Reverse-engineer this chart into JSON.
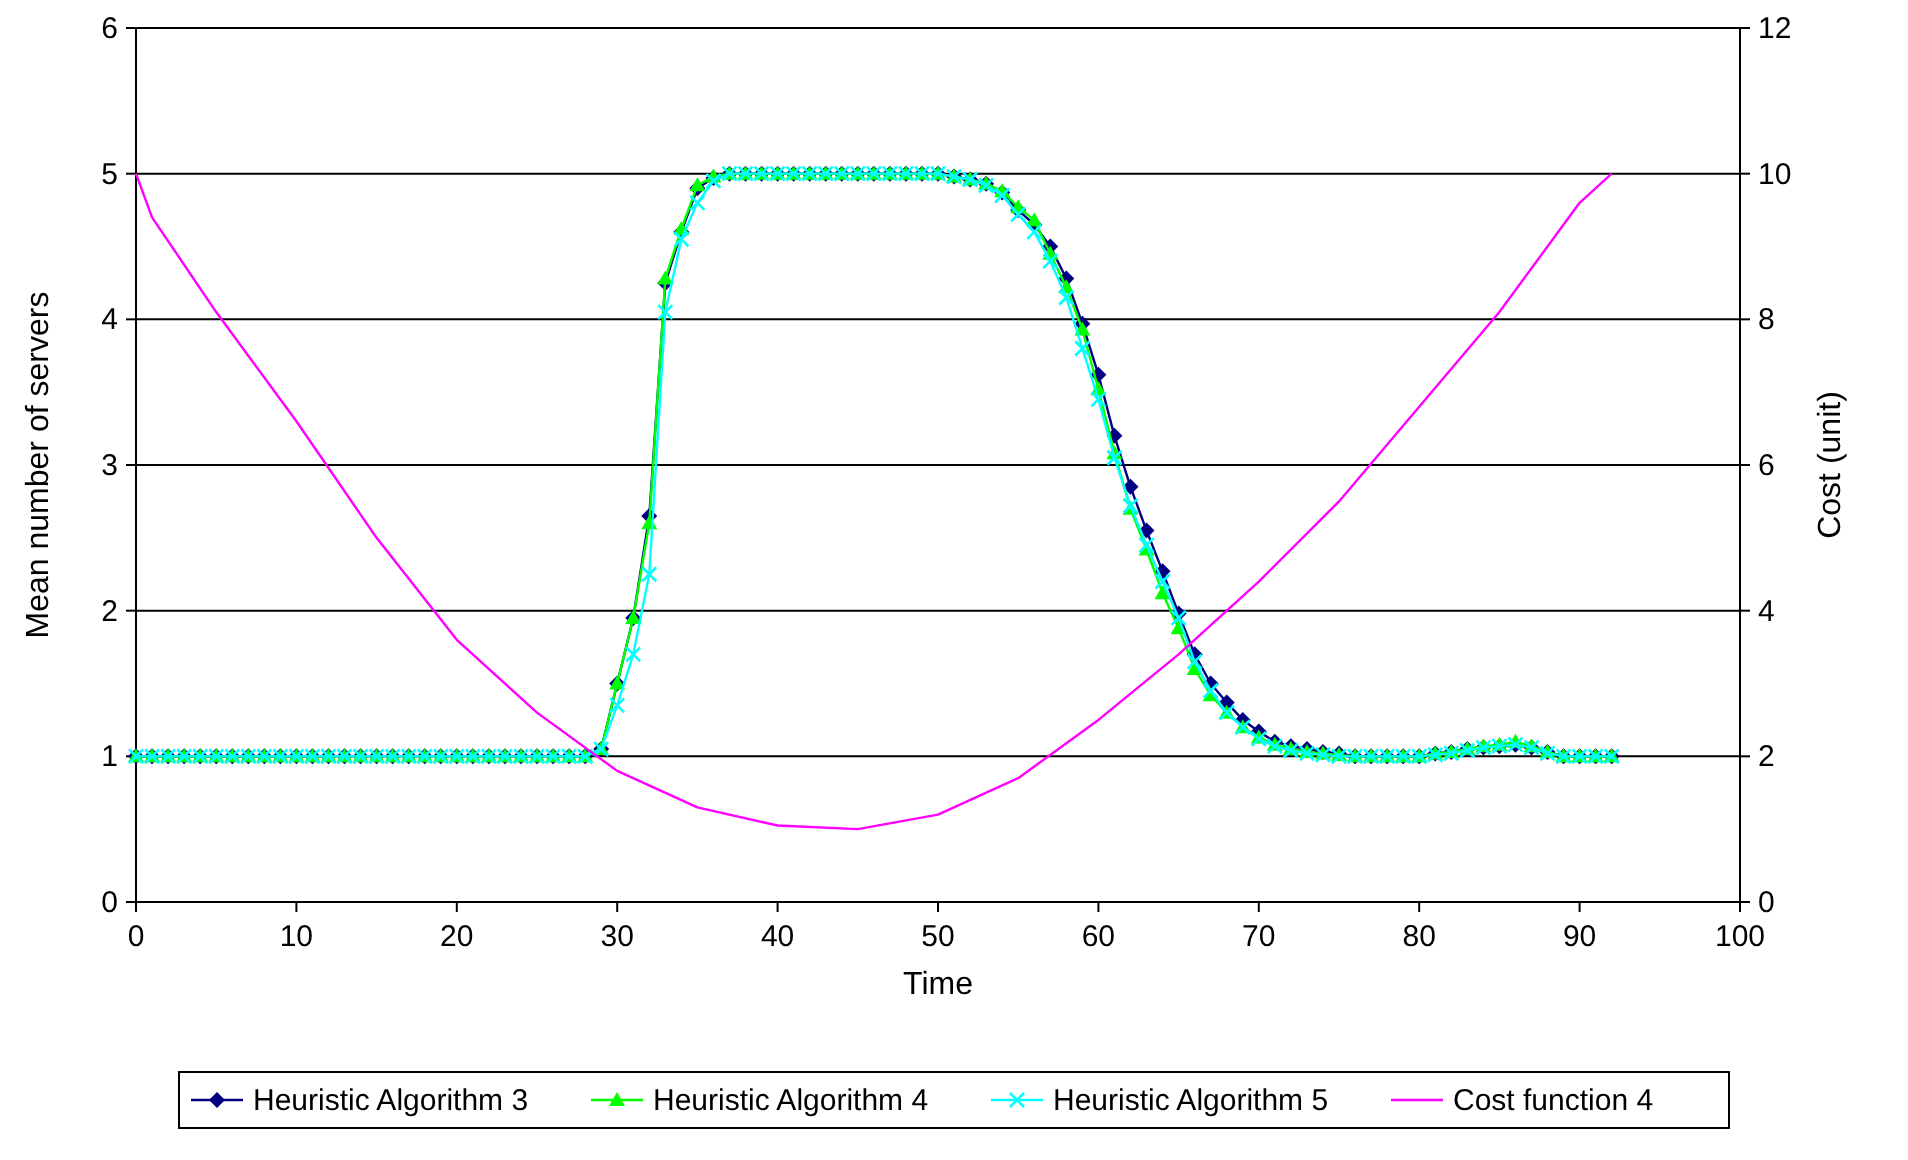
{
  "chart_data": {
    "type": "line",
    "xlabel": "Time",
    "ylabel": "Mean number of servers",
    "y2label": "Cost (unit)",
    "x": [
      0,
      1,
      2,
      3,
      4,
      5,
      6,
      7,
      8,
      9,
      10,
      11,
      12,
      13,
      14,
      15,
      16,
      17,
      18,
      19,
      20,
      21,
      22,
      23,
      24,
      25,
      26,
      27,
      28,
      29,
      30,
      31,
      32,
      33,
      34,
      35,
      36,
      37,
      38,
      39,
      40,
      41,
      42,
      43,
      44,
      45,
      46,
      47,
      48,
      49,
      50,
      51,
      52,
      53,
      54,
      55,
      56,
      57,
      58,
      59,
      60,
      61,
      62,
      63,
      64,
      65,
      66,
      67,
      68,
      69,
      70,
      71,
      72,
      73,
      74,
      75,
      76,
      77,
      78,
      79,
      80,
      81,
      82,
      83,
      84,
      85,
      86,
      87,
      88,
      89,
      90,
      91,
      92
    ],
    "xlim": [
      0,
      100
    ],
    "xticks": [
      0,
      10,
      20,
      30,
      40,
      50,
      60,
      70,
      80,
      90,
      100
    ],
    "ylim": [
      0,
      6
    ],
    "yticks": [
      0,
      1,
      2,
      3,
      4,
      5,
      6
    ],
    "y2lim": [
      0,
      12
    ],
    "y2ticks": [
      0,
      2,
      4,
      6,
      8,
      10,
      12
    ],
    "grid": "y",
    "legend": "bottom",
    "line_style": "solid",
    "series": [
      {
        "name": "Heuristic Algorithm 3",
        "color": "#000080",
        "marker": "diamond",
        "values": [
          1,
          1,
          1,
          1,
          1,
          1,
          1,
          1,
          1,
          1,
          1,
          1,
          1,
          1,
          1,
          1,
          1,
          1,
          1,
          1,
          1,
          1,
          1,
          1,
          1,
          1,
          1,
          1,
          1,
          1.05,
          1.5,
          1.95,
          2.65,
          4.25,
          4.6,
          4.9,
          4.97,
          5,
          5,
          5,
          5,
          5,
          5,
          5,
          5,
          5,
          5,
          5,
          5,
          5,
          5,
          4.98,
          4.96,
          4.93,
          4.87,
          4.75,
          4.65,
          4.5,
          4.28,
          3.97,
          3.62,
          3.2,
          2.85,
          2.55,
          2.27,
          1.98,
          1.7,
          1.5,
          1.37,
          1.25,
          1.17,
          1.1,
          1.07,
          1.05,
          1.03,
          1.02,
          1,
          1,
          1,
          1,
          1,
          1.02,
          1.03,
          1.05,
          1.06,
          1.07,
          1.08,
          1.06,
          1.03,
          1,
          1,
          1,
          1
        ]
      },
      {
        "name": "Heuristic Algorithm 4",
        "color": "#00ff00",
        "marker": "triangle",
        "values": [
          1,
          1,
          1,
          1,
          1,
          1,
          1,
          1,
          1,
          1,
          1,
          1,
          1,
          1,
          1,
          1,
          1,
          1,
          1,
          1,
          1,
          1,
          1,
          1,
          1,
          1,
          1,
          1,
          1,
          1.05,
          1.5,
          1.95,
          2.6,
          4.28,
          4.62,
          4.92,
          4.98,
          5,
          5,
          5,
          5,
          5,
          5,
          5,
          5,
          5,
          5,
          5,
          5,
          5,
          5,
          4.98,
          4.96,
          4.93,
          4.88,
          4.77,
          4.68,
          4.45,
          4.22,
          3.93,
          3.52,
          3.08,
          2.7,
          2.42,
          2.12,
          1.88,
          1.6,
          1.42,
          1.3,
          1.2,
          1.13,
          1.08,
          1.05,
          1.03,
          1.02,
          1.01,
          1,
          1,
          1,
          1,
          1,
          1.02,
          1.03,
          1.05,
          1.07,
          1.08,
          1.1,
          1.07,
          1.03,
          1,
          1,
          1,
          1
        ]
      },
      {
        "name": "Heuristic Algorithm 5",
        "color": "#00ffff",
        "marker": "cross",
        "values": [
          1,
          1,
          1,
          1,
          1,
          1,
          1,
          1,
          1,
          1,
          1,
          1,
          1,
          1,
          1,
          1,
          1,
          1,
          1,
          1,
          1,
          1,
          1,
          1,
          1,
          1,
          1,
          1,
          1,
          1.05,
          1.35,
          1.7,
          2.25,
          4.05,
          4.55,
          4.8,
          4.95,
          5,
          5,
          5,
          5,
          5,
          5,
          5,
          5,
          5,
          5,
          5,
          5,
          5,
          5,
          4.98,
          4.96,
          4.92,
          4.85,
          4.72,
          4.6,
          4.4,
          4.15,
          3.8,
          3.45,
          3.05,
          2.72,
          2.45,
          2.2,
          1.95,
          1.65,
          1.45,
          1.3,
          1.2,
          1.12,
          1.07,
          1.04,
          1.02,
          1.01,
          1,
          1,
          1,
          1,
          1,
          1,
          1.01,
          1.02,
          1.04,
          1.06,
          1.07,
          1.08,
          1.06,
          1.02,
          1,
          1,
          1,
          1
        ]
      },
      {
        "name": "Cost function 4",
        "color": "#ff00ff",
        "marker": "none",
        "axis": "y2",
        "x": [
          0,
          1,
          5,
          10,
          15,
          20,
          25,
          30,
          35,
          40,
          45,
          50,
          55,
          60,
          65,
          70,
          75,
          80,
          85,
          90,
          92
        ],
        "values": [
          10,
          9.4,
          8.1,
          6.6,
          5.0,
          3.6,
          2.6,
          1.8,
          1.3,
          1.05,
          1.0,
          1.2,
          1.7,
          2.5,
          3.4,
          4.4,
          5.5,
          6.8,
          8.1,
          9.6,
          10
        ]
      }
    ]
  }
}
